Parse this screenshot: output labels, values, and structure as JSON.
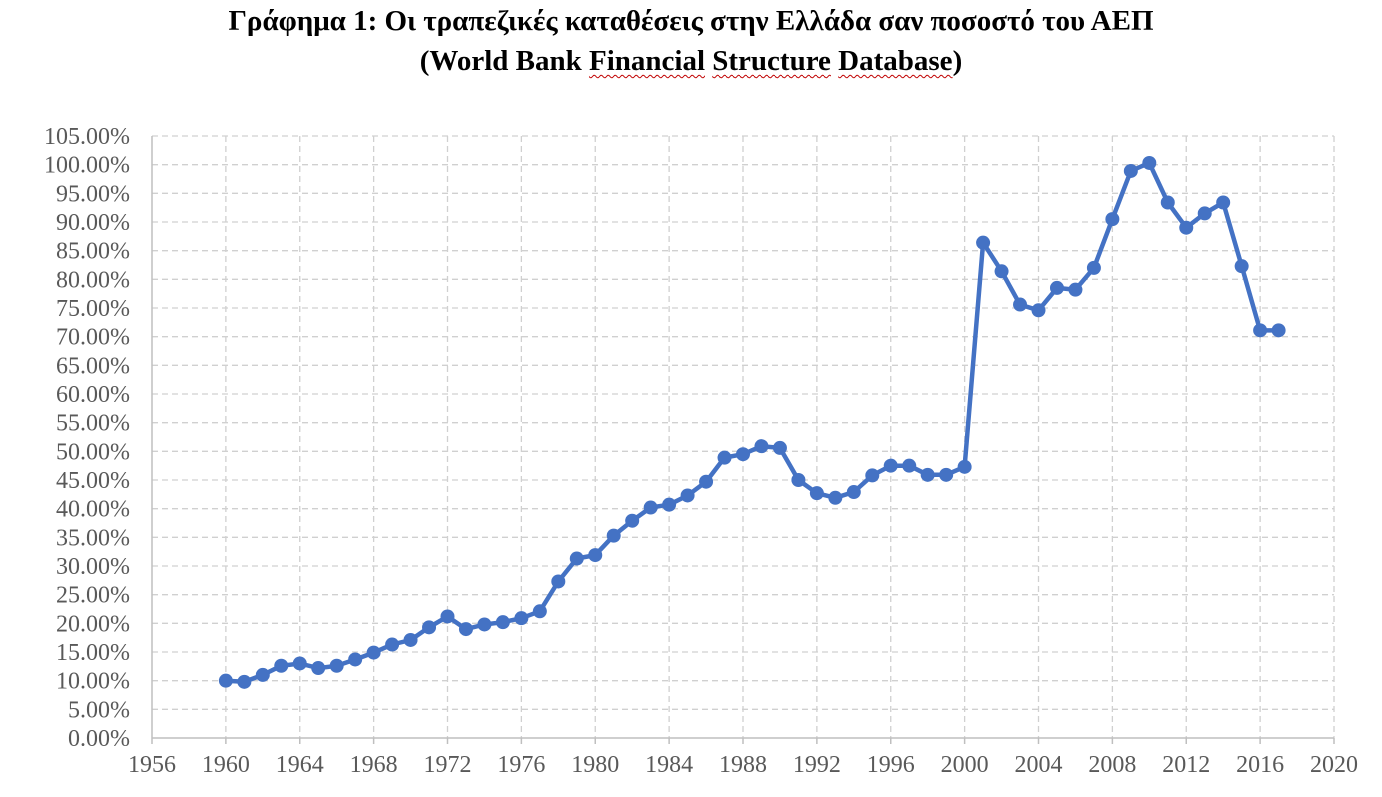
{
  "chart_data": {
    "type": "line",
    "title": "Γράφημα 1: Οι τραπεζικές καταθέσεις στην Ελλάδα σαν ποσοστό του ΑΕΠ",
    "subtitle": "(World Bank Financial Structure Database)",
    "xlabel": "",
    "ylabel": "",
    "xlim": [
      1956,
      2020
    ],
    "ylim": [
      0,
      105
    ],
    "x_ticks": [
      "1956",
      "1960",
      "1964",
      "1968",
      "1972",
      "1976",
      "1980",
      "1984",
      "1988",
      "1992",
      "1996",
      "2000",
      "2004",
      "2008",
      "2012",
      "2016",
      "2020"
    ],
    "y_ticks": [
      "0.00%",
      "5.00%",
      "10.00%",
      "15.00%",
      "20.00%",
      "25.00%",
      "30.00%",
      "35.00%",
      "40.00%",
      "45.00%",
      "50.00%",
      "55.00%",
      "60.00%",
      "65.00%",
      "70.00%",
      "75.00%",
      "80.00%",
      "85.00%",
      "90.00%",
      "95.00%",
      "100.00%",
      "105.00%"
    ],
    "grid": true,
    "legend": "none",
    "color": "#4472c4",
    "series": [
      {
        "x": [
          1960,
          1961,
          1962,
          1963,
          1964,
          1965,
          1966,
          1967,
          1968,
          1969,
          1970,
          1971,
          1972,
          1973,
          1974,
          1975,
          1976,
          1977,
          1978,
          1979,
          1980,
          1981,
          1982,
          1983,
          1984,
          1985,
          1986,
          1987,
          1988,
          1989,
          1990,
          1991,
          1992,
          1993,
          1994,
          1995,
          1996,
          1997,
          1998,
          1999,
          2000,
          2001,
          2002,
          2003,
          2004,
          2005,
          2006,
          2007,
          2008,
          2009,
          2010,
          2011,
          2012,
          2013,
          2014,
          2015,
          2016,
          2017
        ],
        "values": [
          10.0,
          9.8,
          11.0,
          12.6,
          13.0,
          12.2,
          12.6,
          13.7,
          14.9,
          16.3,
          17.1,
          19.3,
          21.2,
          19.0,
          19.8,
          20.2,
          20.9,
          22.1,
          27.3,
          31.3,
          31.9,
          35.3,
          37.9,
          40.2,
          40.7,
          42.3,
          44.7,
          48.9,
          49.5,
          50.9,
          50.6,
          45.0,
          42.7,
          41.9,
          42.9,
          45.8,
          47.5,
          47.5,
          45.9,
          45.9,
          47.3,
          86.4,
          81.4,
          75.6,
          74.6,
          78.5,
          78.2,
          82.0,
          90.5,
          98.9,
          100.3,
          93.4,
          89.0,
          91.5,
          93.4,
          82.3,
          71.1,
          71.1
        ]
      }
    ]
  }
}
